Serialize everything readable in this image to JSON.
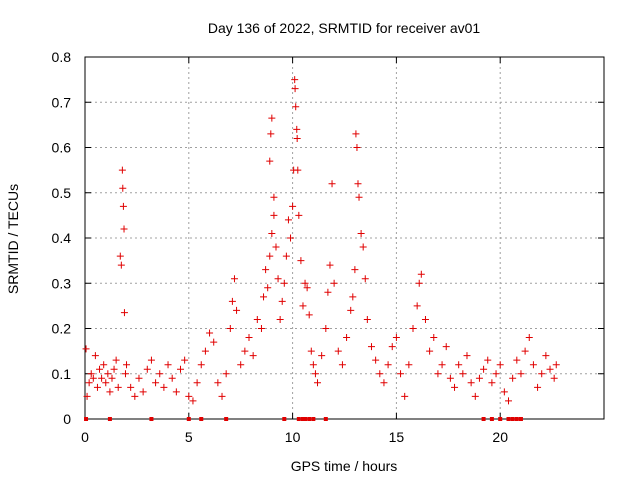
{
  "chart_data": {
    "type": "scatter",
    "title": "Day 136 of 2022, SRMTID for receiver av01",
    "xlabel": "GPS time / hours",
    "ylabel": "SRMTID / TECUs",
    "xlim": [
      0,
      25
    ],
    "ylim": [
      0,
      0.8
    ],
    "xticks": [
      0,
      5,
      10,
      15,
      20
    ],
    "xtick_labels": [
      "0",
      "5",
      "10",
      "15",
      "20"
    ],
    "yticks": [
      0,
      0.1,
      0.2,
      0.3,
      0.4,
      0.5,
      0.6,
      0.7,
      0.8
    ],
    "ytick_labels": [
      "0",
      "0.1",
      "0.2",
      "0.3",
      "0.4",
      "0.5",
      "0.6",
      "0.7",
      "0.8"
    ],
    "grid": true,
    "marker": "+",
    "series": [
      {
        "name": "av01",
        "color": "#e00000",
        "points": [
          [
            0.05,
            0.155
          ],
          [
            0.1,
            0.05
          ],
          [
            0.2,
            0.08
          ],
          [
            0.3,
            0.1
          ],
          [
            0.4,
            0.09
          ],
          [
            0.5,
            0.14
          ],
          [
            0.6,
            0.07
          ],
          [
            0.7,
            0.11
          ],
          [
            0.8,
            0.09
          ],
          [
            0.9,
            0.12
          ],
          [
            1.0,
            0.08
          ],
          [
            1.1,
            0.1
          ],
          [
            1.2,
            0.06
          ],
          [
            1.3,
            0.09
          ],
          [
            1.4,
            0.11
          ],
          [
            1.5,
            0.13
          ],
          [
            1.6,
            0.07
          ],
          [
            1.7,
            0.36
          ],
          [
            1.75,
            0.34
          ],
          [
            1.8,
            0.55
          ],
          [
            1.82,
            0.51
          ],
          [
            1.85,
            0.47
          ],
          [
            1.88,
            0.42
          ],
          [
            1.9,
            0.235
          ],
          [
            1.95,
            0.1
          ],
          [
            2.0,
            0.12
          ],
          [
            2.2,
            0.07
          ],
          [
            2.4,
            0.05
          ],
          [
            2.6,
            0.09
          ],
          [
            2.8,
            0.06
          ],
          [
            3.0,
            0.11
          ],
          [
            3.2,
            0.13
          ],
          [
            3.4,
            0.08
          ],
          [
            3.6,
            0.1
          ],
          [
            3.8,
            0.07
          ],
          [
            4.0,
            0.12
          ],
          [
            4.2,
            0.09
          ],
          [
            4.4,
            0.06
          ],
          [
            4.6,
            0.11
          ],
          [
            4.8,
            0.13
          ],
          [
            5.0,
            0.05
          ],
          [
            5.2,
            0.04
          ],
          [
            5.4,
            0.08
          ],
          [
            5.6,
            0.12
          ],
          [
            5.8,
            0.15
          ],
          [
            6.0,
            0.19
          ],
          [
            6.2,
            0.17
          ],
          [
            6.4,
            0.08
          ],
          [
            6.6,
            0.05
          ],
          [
            6.8,
            0.1
          ],
          [
            7.0,
            0.2
          ],
          [
            7.1,
            0.26
          ],
          [
            7.2,
            0.31
          ],
          [
            7.3,
            0.24
          ],
          [
            7.5,
            0.12
          ],
          [
            7.7,
            0.15
          ],
          [
            7.9,
            0.18
          ],
          [
            8.1,
            0.14
          ],
          [
            8.3,
            0.22
          ],
          [
            8.5,
            0.2
          ],
          [
            8.6,
            0.27
          ],
          [
            8.7,
            0.33
          ],
          [
            8.8,
            0.29
          ],
          [
            8.9,
            0.36
          ],
          [
            9.0,
            0.41
          ],
          [
            9.1,
            0.49
          ],
          [
            9.2,
            0.38
          ],
          [
            9.3,
            0.31
          ],
          [
            9.4,
            0.22
          ],
          [
            9.5,
            0.26
          ],
          [
            8.9,
            0.57
          ],
          [
            8.95,
            0.63
          ],
          [
            9.0,
            0.665
          ],
          [
            9.1,
            0.45
          ],
          [
            9.6,
            0.3
          ],
          [
            9.7,
            0.36
          ],
          [
            9.8,
            0.44
          ],
          [
            9.9,
            0.4
          ],
          [
            10.0,
            0.47
          ],
          [
            10.05,
            0.55
          ],
          [
            10.1,
            0.75
          ],
          [
            10.12,
            0.73
          ],
          [
            10.15,
            0.69
          ],
          [
            10.2,
            0.64
          ],
          [
            10.22,
            0.62
          ],
          [
            10.25,
            0.55
          ],
          [
            10.3,
            0.45
          ],
          [
            10.4,
            0.35
          ],
          [
            10.5,
            0.25
          ],
          [
            10.6,
            0.3
          ],
          [
            10.7,
            0.29
          ],
          [
            10.8,
            0.23
          ],
          [
            10.9,
            0.15
          ],
          [
            11.0,
            0.12
          ],
          [
            11.1,
            0.1
          ],
          [
            11.2,
            0.08
          ],
          [
            11.4,
            0.14
          ],
          [
            11.6,
            0.2
          ],
          [
            11.7,
            0.28
          ],
          [
            11.8,
            0.34
          ],
          [
            11.9,
            0.52
          ],
          [
            12.0,
            0.3
          ],
          [
            12.2,
            0.15
          ],
          [
            12.4,
            0.12
          ],
          [
            12.6,
            0.18
          ],
          [
            12.8,
            0.24
          ],
          [
            12.9,
            0.27
          ],
          [
            13.0,
            0.33
          ],
          [
            13.05,
            0.63
          ],
          [
            13.1,
            0.6
          ],
          [
            13.15,
            0.52
          ],
          [
            13.2,
            0.49
          ],
          [
            13.3,
            0.41
          ],
          [
            13.4,
            0.38
          ],
          [
            13.5,
            0.31
          ],
          [
            13.6,
            0.22
          ],
          [
            13.8,
            0.16
          ],
          [
            14.0,
            0.13
          ],
          [
            14.2,
            0.1
          ],
          [
            14.4,
            0.08
          ],
          [
            14.6,
            0.12
          ],
          [
            14.8,
            0.16
          ],
          [
            15.0,
            0.18
          ],
          [
            15.2,
            0.1
          ],
          [
            15.4,
            0.05
          ],
          [
            15.6,
            0.12
          ],
          [
            15.8,
            0.2
          ],
          [
            16.0,
            0.25
          ],
          [
            16.1,
            0.3
          ],
          [
            16.2,
            0.32
          ],
          [
            16.4,
            0.22
          ],
          [
            16.6,
            0.15
          ],
          [
            16.8,
            0.18
          ],
          [
            17.0,
            0.1
          ],
          [
            17.2,
            0.12
          ],
          [
            17.4,
            0.16
          ],
          [
            17.6,
            0.09
          ],
          [
            17.8,
            0.07
          ],
          [
            18.0,
            0.12
          ],
          [
            18.2,
            0.1
          ],
          [
            18.4,
            0.14
          ],
          [
            18.6,
            0.08
          ],
          [
            18.8,
            0.05
          ],
          [
            19.0,
            0.09
          ],
          [
            19.2,
            0.11
          ],
          [
            19.4,
            0.13
          ],
          [
            19.6,
            0.08
          ],
          [
            19.8,
            0.1
          ],
          [
            20.0,
            0.12
          ],
          [
            20.2,
            0.06
          ],
          [
            20.4,
            0.04
          ],
          [
            20.6,
            0.09
          ],
          [
            20.8,
            0.13
          ],
          [
            21.0,
            0.1
          ],
          [
            21.2,
            0.15
          ],
          [
            21.4,
            0.18
          ],
          [
            21.6,
            0.12
          ],
          [
            21.8,
            0.07
          ],
          [
            22.0,
            0.1
          ],
          [
            22.2,
            0.14
          ],
          [
            22.4,
            0.11
          ],
          [
            22.6,
            0.09
          ],
          [
            22.7,
            0.12
          ]
        ],
        "zero_points": [
          0.05,
          1.2,
          3.2,
          5.0,
          5.6,
          6.8,
          9.6,
          10.3,
          10.5,
          10.6,
          10.8,
          11.0,
          11.6,
          19.2,
          19.6,
          20.0,
          20.4,
          20.6,
          20.8,
          21.0
        ]
      }
    ]
  }
}
